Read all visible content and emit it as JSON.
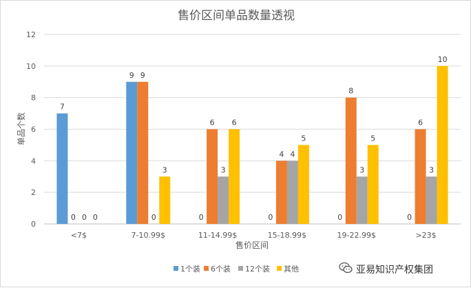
{
  "chart_data": {
    "type": "bar",
    "title": "售价区间单品数量透视",
    "xlabel": "售价区间",
    "ylabel": "单品个数",
    "ylim": [
      0,
      12
    ],
    "yticks": [
      0,
      2,
      4,
      6,
      8,
      10,
      12
    ],
    "grid": true,
    "legend_position": "bottom",
    "categories": [
      "<7$",
      "7-10.99$",
      "11-14.99$",
      "15-18.99$",
      "19-22.99$",
      ">23$"
    ],
    "series": [
      {
        "name": "1个装",
        "color": "#5b9bd5",
        "values": [
          7,
          9,
          0,
          0,
          0,
          0
        ]
      },
      {
        "name": "6个装",
        "color": "#ed7d31",
        "values": [
          0,
          9,
          6,
          4,
          8,
          6
        ]
      },
      {
        "name": "12个装",
        "color": "#a5a5a5",
        "values": [
          0,
          0,
          3,
          4,
          3,
          3
        ]
      },
      {
        "name": "其他",
        "color": "#ffc000",
        "values": [
          0,
          3,
          6,
          5,
          5,
          10
        ]
      }
    ]
  },
  "watermark": {
    "text": "亚易知识产权集团",
    "icon": "wechat-icon"
  }
}
